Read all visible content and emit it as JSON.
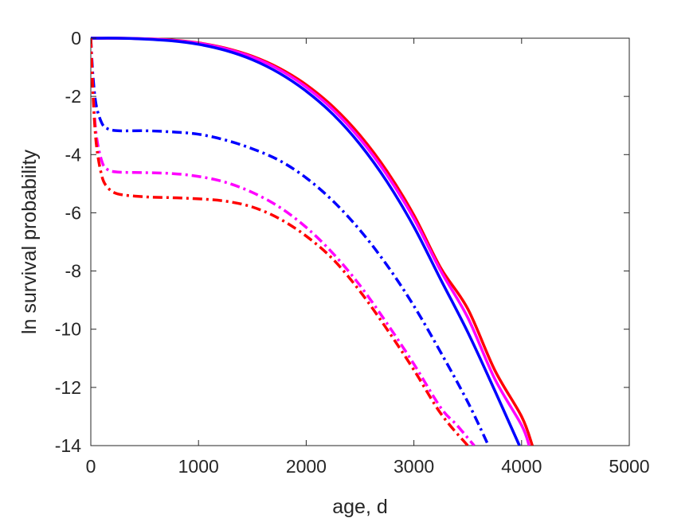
{
  "chart_data": {
    "type": "line",
    "title": "",
    "xlabel": "age, d",
    "ylabel": "ln survival probability",
    "xlim": [
      0,
      5000
    ],
    "ylim": [
      -14,
      0
    ],
    "xticks": [
      0,
      1000,
      2000,
      3000,
      4000,
      5000
    ],
    "yticks": [
      0,
      -2,
      -4,
      -6,
      -8,
      -10,
      -12,
      -14
    ],
    "xtick_labels": [
      "0",
      "1000",
      "2000",
      "3000",
      "4000",
      "5000"
    ],
    "ytick_labels": [
      "0",
      "-2",
      "-4",
      "-6",
      "-8",
      "-10",
      "-12",
      "-14"
    ],
    "grid": false,
    "box": true,
    "series": [
      {
        "color": "#ff0000",
        "style": "solid",
        "x": [
          0,
          250,
          500,
          750,
          1000,
          1250,
          1500,
          1750,
          2000,
          2250,
          2500,
          2750,
          3000,
          3250,
          3500,
          3750,
          4000,
          4100
        ],
        "y": [
          0,
          0,
          -0.02,
          -0.06,
          -0.16,
          -0.34,
          -0.62,
          -1.03,
          -1.6,
          -2.36,
          -3.34,
          -4.57,
          -6.08,
          -7.9,
          -9.3,
          -11.4,
          -13.0,
          -14.0
        ]
      },
      {
        "color": "#ff00ff",
        "style": "solid",
        "x": [
          0,
          250,
          500,
          750,
          1000,
          1250,
          1500,
          1750,
          2000,
          2250,
          2500,
          2750,
          3000,
          3250,
          3500,
          3750,
          4000,
          4070
        ],
        "y": [
          0,
          0,
          -0.02,
          -0.07,
          -0.17,
          -0.36,
          -0.65,
          -1.08,
          -1.68,
          -2.46,
          -3.46,
          -4.7,
          -6.2,
          -8.0,
          -9.6,
          -11.7,
          -13.3,
          -14.0
        ]
      },
      {
        "color": "#0000ff",
        "style": "solid",
        "x": [
          0,
          250,
          500,
          750,
          1000,
          1250,
          1500,
          1750,
          2000,
          2250,
          2500,
          2750,
          3000,
          3250,
          3500,
          3750,
          3980
        ],
        "y": [
          0,
          0,
          -0.03,
          -0.09,
          -0.21,
          -0.42,
          -0.74,
          -1.2,
          -1.82,
          -2.62,
          -3.65,
          -4.93,
          -6.48,
          -8.3,
          -10.1,
          -12.1,
          -14.0
        ]
      },
      {
        "color": "#0000ff",
        "style": "dashdot",
        "x": [
          0,
          20,
          50,
          100,
          150,
          250,
          500,
          750,
          1000,
          1250,
          1500,
          1750,
          2000,
          2250,
          2500,
          2750,
          3000,
          3250,
          3500,
          3680
        ],
        "y": [
          0,
          -1.3,
          -2.3,
          -2.9,
          -3.1,
          -3.18,
          -3.18,
          -3.22,
          -3.3,
          -3.5,
          -3.8,
          -4.2,
          -4.8,
          -5.6,
          -6.6,
          -7.8,
          -9.2,
          -10.8,
          -12.5,
          -13.9
        ]
      },
      {
        "color": "#ff00ff",
        "style": "dashdot",
        "x": [
          0,
          20,
          50,
          100,
          150,
          250,
          500,
          750,
          1000,
          1250,
          1500,
          1750,
          2000,
          2250,
          2500,
          2750,
          3000,
          3250,
          3400,
          3560
        ],
        "y": [
          0,
          -1.8,
          -3.3,
          -4.2,
          -4.5,
          -4.6,
          -4.62,
          -4.65,
          -4.75,
          -4.95,
          -5.3,
          -5.8,
          -6.5,
          -7.4,
          -8.5,
          -9.8,
          -11.2,
          -12.7,
          -13.3,
          -14.0
        ]
      },
      {
        "color": "#ff0000",
        "style": "dashdot",
        "x": [
          0,
          20,
          50,
          100,
          150,
          250,
          500,
          750,
          1000,
          1250,
          1500,
          1750,
          2000,
          2250,
          2500,
          2750,
          3000,
          3250,
          3500
        ],
        "y": [
          0,
          -1.9,
          -3.6,
          -4.7,
          -5.1,
          -5.35,
          -5.45,
          -5.48,
          -5.52,
          -5.6,
          -5.8,
          -6.2,
          -6.8,
          -7.6,
          -8.7,
          -10.0,
          -11.4,
          -12.9,
          -14.0
        ]
      }
    ]
  }
}
